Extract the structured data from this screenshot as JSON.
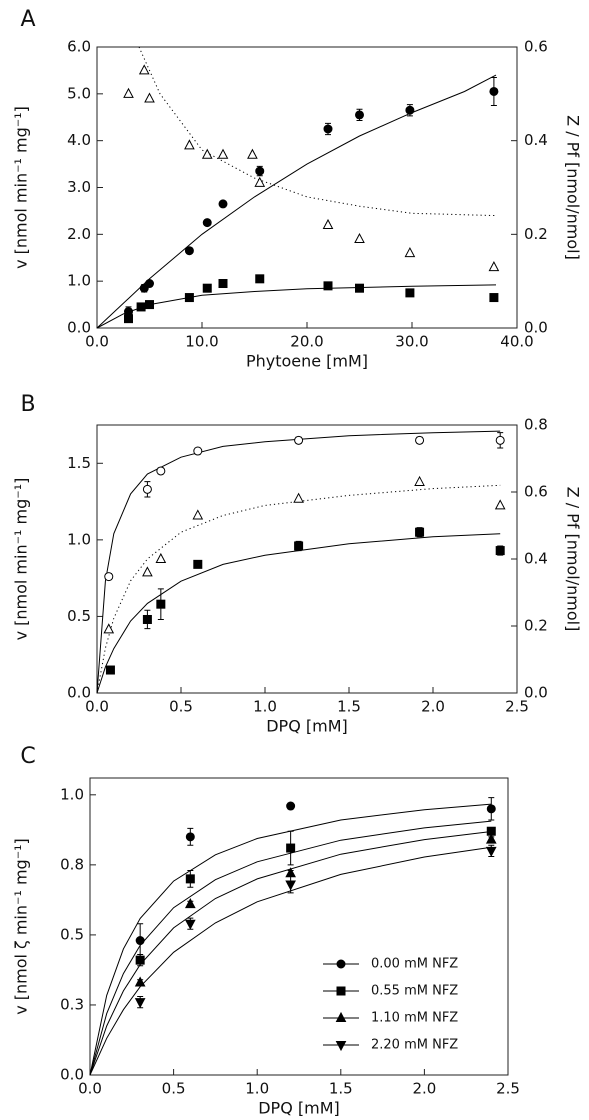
{
  "chart_data": [
    {
      "type": "scatter",
      "label": "A",
      "color": "#000000",
      "xlabel": "Phytoene [mM]",
      "ylabel": "v [nmol min⁻¹ mg⁻¹]",
      "y2label": "Z / Pf [nmol/nmol]",
      "xlim": [
        0,
        40
      ],
      "ylim": [
        0,
        6
      ],
      "y2lim": [
        0,
        0.6
      ],
      "xticks": [
        {
          "value": 0,
          "label": "0.0"
        },
        {
          "value": 10,
          "label": "10.0"
        },
        {
          "value": 20,
          "label": "20.0"
        },
        {
          "value": 30,
          "label": "30.0"
        },
        {
          "value": 40,
          "label": "40.0"
        }
      ],
      "yticks": [
        {
          "value": 0,
          "label": "0.0"
        },
        {
          "value": 1,
          "label": "1.0"
        },
        {
          "value": 2,
          "label": "2.0"
        },
        {
          "value": 3,
          "label": "3.0"
        },
        {
          "value": 4,
          "label": "4.0"
        },
        {
          "value": 5,
          "label": "5.0"
        },
        {
          "value": 6,
          "label": "6.0"
        }
      ],
      "y2ticks": [
        {
          "value": 0,
          "label": "0.0"
        },
        0.2,
        0.4,
        0.6
      ],
      "series": [
        {
          "marker": "circle",
          "filled": true,
          "x": [
            3.0,
            4.5,
            5.0,
            8.8,
            10.5,
            12.0,
            15.5,
            22.0,
            25.0,
            29.8,
            37.8
          ],
          "values": [
            0.35,
            0.85,
            0.95,
            1.65,
            2.25,
            2.65,
            3.35,
            4.25,
            4.55,
            4.65,
            5.05
          ],
          "errors": [
            0.1,
            0.08,
            0.05,
            0.06,
            0.06,
            0.05,
            0.1,
            0.12,
            0.12,
            0.12,
            0.3
          ]
        },
        {
          "marker": "square",
          "filled": true,
          "x": [
            3.0,
            4.2,
            5.0,
            8.8,
            10.5,
            12.0,
            15.5,
            22.0,
            25.0,
            29.8,
            37.8
          ],
          "values": [
            0.2,
            0.45,
            0.5,
            0.65,
            0.85,
            0.95,
            1.05,
            0.9,
            0.85,
            0.75,
            0.65
          ]
        },
        {
          "marker": "triangle",
          "filled": false,
          "axis": "y2",
          "x": [
            3.0,
            4.5,
            5.0,
            8.8,
            10.5,
            12.0,
            14.8,
            15.5,
            22.0,
            25.0,
            29.8,
            37.8
          ],
          "values": [
            0.5,
            0.55,
            0.49,
            0.39,
            0.37,
            0.37,
            0.37,
            0.31,
            0.22,
            0.19,
            0.16,
            0.13
          ]
        }
      ],
      "fits": [
        {
          "style": "solid",
          "x": [
            0,
            5,
            10,
            15,
            20,
            25,
            30,
            35,
            38
          ],
          "values": [
            0,
            1.05,
            2.0,
            2.8,
            3.5,
            4.1,
            4.6,
            5.05,
            5.4
          ]
        },
        {
          "style": "solid",
          "x": [
            0,
            2.5,
            5,
            10,
            15,
            20,
            30,
            38
          ],
          "values": [
            0,
            0.3,
            0.5,
            0.7,
            0.78,
            0.84,
            0.89,
            0.92
          ]
        },
        {
          "style": "dotted",
          "axis": "y2",
          "x": [
            4,
            6,
            10,
            15,
            20,
            25,
            30,
            38
          ],
          "values": [
            0.6,
            0.5,
            0.38,
            0.32,
            0.28,
            0.26,
            0.245,
            0.24
          ]
        }
      ]
    },
    {
      "type": "scatter",
      "label": "B",
      "color": "#000000",
      "xlabel": "DPQ [mM]",
      "ylabel": "v [nmol min⁻¹ mg⁻¹]",
      "y2label": "Z / Pf [nmol/nmol]",
      "xlim": [
        0,
        2.5
      ],
      "ylim": [
        0,
        1.75
      ],
      "y2lim": [
        0,
        0.8
      ],
      "xticks": [
        {
          "value": 0,
          "label": "0.0"
        },
        0.5,
        {
          "value": 1,
          "label": "1.0"
        },
        1.5,
        {
          "value": 2,
          "label": "2.0"
        },
        2.5
      ],
      "yticks": [
        {
          "value": 0,
          "label": "0.0"
        },
        0.5,
        {
          "value": 1,
          "label": "1.0"
        },
        1.5
      ],
      "y2ticks": [
        {
          "value": 0,
          "label": "0.0"
        },
        0.2,
        0.4,
        0.6,
        0.8
      ],
      "series": [
        {
          "marker": "circle",
          "filled": false,
          "x": [
            0.07,
            0.3,
            0.38,
            0.6,
            1.2,
            1.92,
            2.4
          ],
          "values": [
            0.76,
            1.33,
            1.45,
            1.58,
            1.65,
            1.65,
            1.65
          ],
          "errors": [
            0.02,
            0.05,
            0.02,
            0.02,
            0.02,
            0.02,
            0.05
          ]
        },
        {
          "marker": "square",
          "filled": true,
          "x": [
            0.08,
            0.3,
            0.38,
            0.6,
            1.2,
            1.92,
            2.4
          ],
          "values": [
            0.15,
            0.48,
            0.58,
            0.84,
            0.96,
            1.05,
            0.93
          ],
          "errors": [
            0.02,
            0.06,
            0.1,
            0.02,
            0.03,
            0.03,
            0.03
          ]
        },
        {
          "marker": "triangle",
          "filled": false,
          "axis": "y2",
          "x": [
            0.07,
            0.3,
            0.38,
            0.6,
            1.2,
            1.92,
            2.4
          ],
          "values": [
            0.19,
            0.36,
            0.4,
            0.53,
            0.58,
            0.63,
            0.56
          ]
        }
      ],
      "fits": [
        {
          "style": "solid",
          "x": [
            0,
            0.05,
            0.1,
            0.2,
            0.3,
            0.5,
            0.75,
            1.0,
            1.5,
            2.0,
            2.4
          ],
          "values": [
            0,
            0.73,
            1.04,
            1.3,
            1.43,
            1.54,
            1.61,
            1.64,
            1.68,
            1.7,
            1.71
          ]
        },
        {
          "style": "solid",
          "x": [
            0,
            0.05,
            0.1,
            0.2,
            0.3,
            0.5,
            0.75,
            1.0,
            1.5,
            2.0,
            2.4
          ],
          "values": [
            0,
            0.17,
            0.29,
            0.47,
            0.585,
            0.73,
            0.84,
            0.9,
            0.975,
            1.02,
            1.04
          ]
        },
        {
          "style": "dotted",
          "axis": "y2",
          "x": [
            0,
            0.05,
            0.1,
            0.2,
            0.3,
            0.5,
            0.75,
            1.0,
            1.5,
            2.0,
            2.4
          ],
          "values": [
            0,
            0.134,
            0.223,
            0.335,
            0.4,
            0.48,
            0.53,
            0.56,
            0.59,
            0.61,
            0.62
          ]
        }
      ]
    },
    {
      "type": "scatter",
      "label": "C",
      "color": "#000000",
      "legend": "lower right",
      "xlabel": "DPQ [mM]",
      "ylabel": "v [nmol ζ min⁻¹ mg⁻¹]",
      "xlim": [
        0,
        2.5
      ],
      "ylim": [
        0,
        1.06
      ],
      "xticks": [
        {
          "value": 0,
          "label": "0.0"
        },
        0.5,
        {
          "value": 1,
          "label": "1.0"
        },
        1.5,
        {
          "value": 2,
          "label": "2.0"
        },
        2.5
      ],
      "yticks": [
        {
          "value": 0,
          "label": "0.0"
        },
        {
          "value": 0.25,
          "label": "0.3"
        },
        0.5,
        {
          "value": 0.75,
          "label": "0.8"
        },
        {
          "value": 1,
          "label": "1.0"
        }
      ],
      "series": [
        {
          "name": "0.00 mM NFZ",
          "marker": "circle",
          "filled": true,
          "x": [
            0.3,
            0.6,
            1.2,
            2.4
          ],
          "values": [
            0.48,
            0.85,
            0.96,
            0.95
          ],
          "errors": [
            0.06,
            0.03,
            0.01,
            0.04
          ]
        },
        {
          "name": "0.55 mM NFZ",
          "marker": "square",
          "filled": true,
          "x": [
            0.3,
            0.6,
            1.2,
            2.4
          ],
          "values": [
            0.41,
            0.7,
            0.81,
            0.87
          ],
          "errors": [
            0.02,
            0.03,
            0.06,
            0.01
          ]
        },
        {
          "name": "1.10 mM NFZ",
          "marker": "triangle",
          "filled": true,
          "x": [
            0.3,
            0.6,
            1.2,
            2.4
          ],
          "values": [
            0.33,
            0.61,
            0.72,
            0.84
          ],
          "errors": [
            0.01,
            0.01,
            0.01,
            0.01
          ]
        },
        {
          "name": "2.20 mM NFZ",
          "marker": "triangle-down",
          "filled": true,
          "x": [
            0.3,
            0.6,
            1.2,
            2.4
          ],
          "values": [
            0.26,
            0.54,
            0.68,
            0.8
          ],
          "errors": [
            0.02,
            0.02,
            0.03,
            0.02
          ]
        }
      ],
      "fits": [
        {
          "style": "solid",
          "x": [
            0,
            0.1,
            0.2,
            0.3,
            0.5,
            0.75,
            1.0,
            1.5,
            2.0,
            2.4
          ],
          "values": [
            0,
            0.284,
            0.45,
            0.559,
            0.692,
            0.786,
            0.844,
            0.91,
            0.947,
            0.967
          ]
        },
        {
          "style": "solid",
          "x": [
            0,
            0.1,
            0.2,
            0.3,
            0.5,
            0.75,
            1.0,
            1.5,
            2.0,
            2.4
          ],
          "values": [
            0,
            0.219,
            0.362,
            0.463,
            0.597,
            0.697,
            0.761,
            0.838,
            0.882,
            0.906
          ]
        },
        {
          "style": "solid",
          "x": [
            0,
            0.1,
            0.2,
            0.3,
            0.5,
            0.75,
            1.0,
            1.5,
            2.0,
            2.4
          ],
          "values": [
            0,
            0.175,
            0.3,
            0.394,
            0.525,
            0.63,
            0.7,
            0.788,
            0.84,
            0.869
          ]
        },
        {
          "style": "solid",
          "x": [
            0,
            0.1,
            0.2,
            0.3,
            0.5,
            0.75,
            1.0,
            1.5,
            2.0,
            2.4
          ],
          "values": [
            0,
            0.131,
            0.233,
            0.315,
            0.438,
            0.543,
            0.618,
            0.716,
            0.778,
            0.813
          ]
        }
      ]
    }
  ]
}
